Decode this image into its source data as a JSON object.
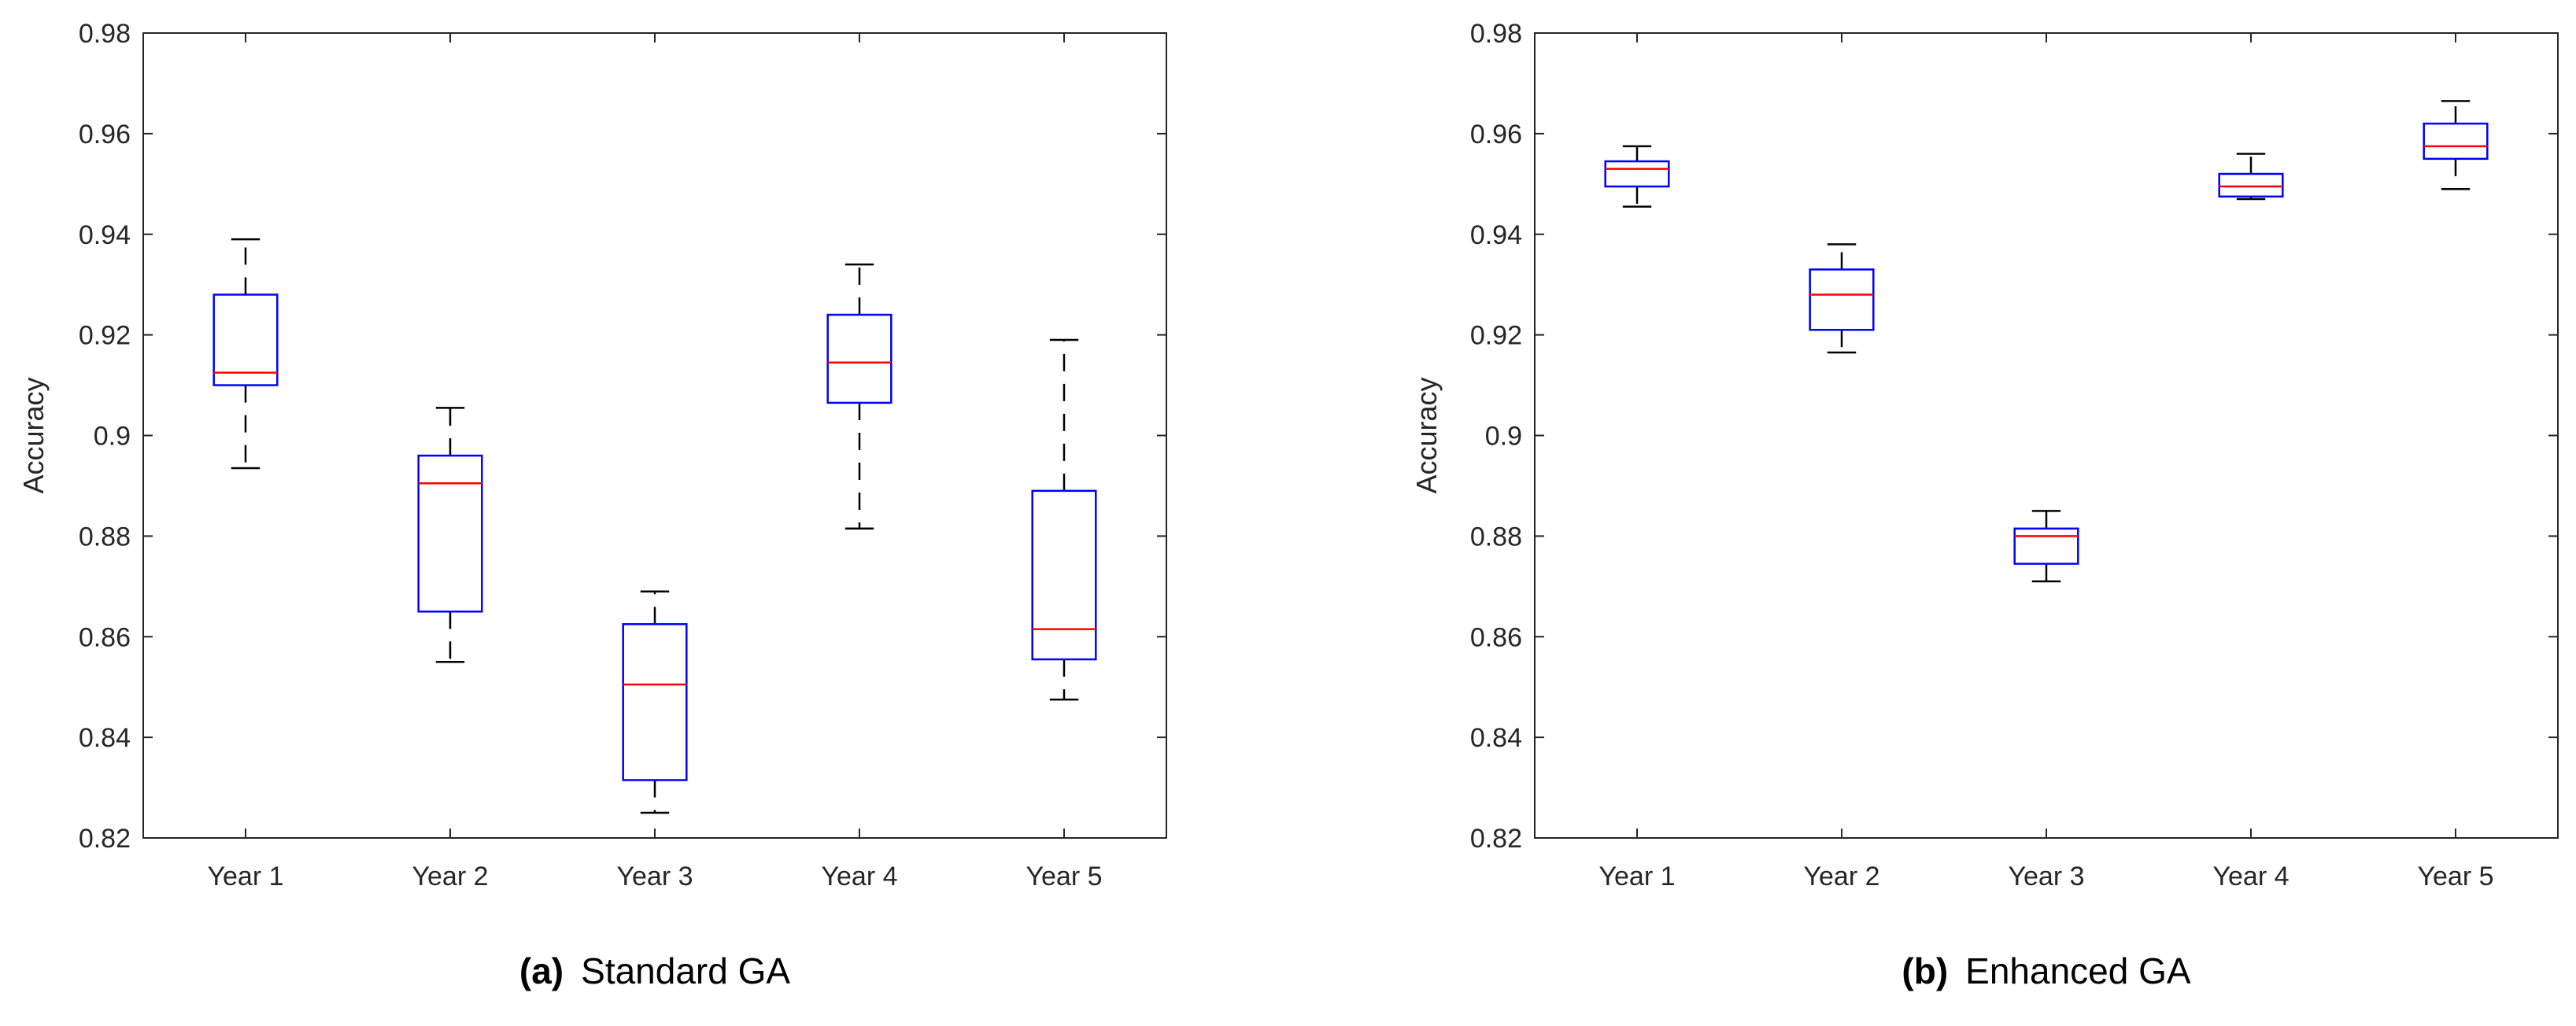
{
  "chart_data": [
    {
      "type": "box",
      "ylabel": "Accuracy",
      "xlabel": "",
      "ylim": [
        0.82,
        0.98
      ],
      "yticks": [
        "0.82",
        "0.84",
        "0.86",
        "0.88",
        "0.9",
        "0.92",
        "0.94",
        "0.96",
        "0.98"
      ],
      "ytick_values": [
        0.82,
        0.84,
        0.86,
        0.88,
        0.9,
        0.92,
        0.94,
        0.96,
        0.98
      ],
      "categories": [
        "Year 1",
        "Year 2",
        "Year 3",
        "Year 4",
        "Year 5"
      ],
      "caption_label": "(a)",
      "caption_text": "Standard GA",
      "boxes": [
        {
          "min": 0.8935,
          "q1": 0.91,
          "median": 0.9125,
          "q3": 0.928,
          "max": 0.939
        },
        {
          "min": 0.855,
          "q1": 0.865,
          "median": 0.8905,
          "q3": 0.896,
          "max": 0.9055
        },
        {
          "min": 0.825,
          "q1": 0.8315,
          "median": 0.8505,
          "q3": 0.8625,
          "max": 0.869
        },
        {
          "min": 0.8815,
          "q1": 0.9065,
          "median": 0.9145,
          "q3": 0.924,
          "max": 0.934
        },
        {
          "min": 0.8475,
          "q1": 0.8555,
          "median": 0.8615,
          "q3": 0.889,
          "max": 0.919
        }
      ]
    },
    {
      "type": "box",
      "ylabel": "Accuracy",
      "xlabel": "",
      "ylim": [
        0.82,
        0.98
      ],
      "yticks": [
        "0.82",
        "0.84",
        "0.86",
        "0.88",
        "0.9",
        "0.92",
        "0.94",
        "0.96",
        "0.98"
      ],
      "ytick_values": [
        0.82,
        0.84,
        0.86,
        0.88,
        0.9,
        0.92,
        0.94,
        0.96,
        0.98
      ],
      "categories": [
        "Year 1",
        "Year 2",
        "Year 3",
        "Year 4",
        "Year 5"
      ],
      "caption_label": "(b)",
      "caption_text": "Enhanced GA",
      "boxes": [
        {
          "min": 0.9455,
          "q1": 0.9495,
          "median": 0.953,
          "q3": 0.9545,
          "max": 0.9575
        },
        {
          "min": 0.9165,
          "q1": 0.921,
          "median": 0.928,
          "q3": 0.933,
          "max": 0.938
        },
        {
          "min": 0.871,
          "q1": 0.8745,
          "median": 0.88,
          "q3": 0.8815,
          "max": 0.885
        },
        {
          "min": 0.947,
          "q1": 0.9475,
          "median": 0.9495,
          "q3": 0.952,
          "max": 0.956
        },
        {
          "min": 0.949,
          "q1": 0.955,
          "median": 0.9575,
          "q3": 0.962,
          "max": 0.9665
        }
      ]
    }
  ],
  "colors": {
    "box": "#0000ff",
    "median": "#ff0000",
    "whisker": "#000000",
    "axis": "#262626"
  }
}
